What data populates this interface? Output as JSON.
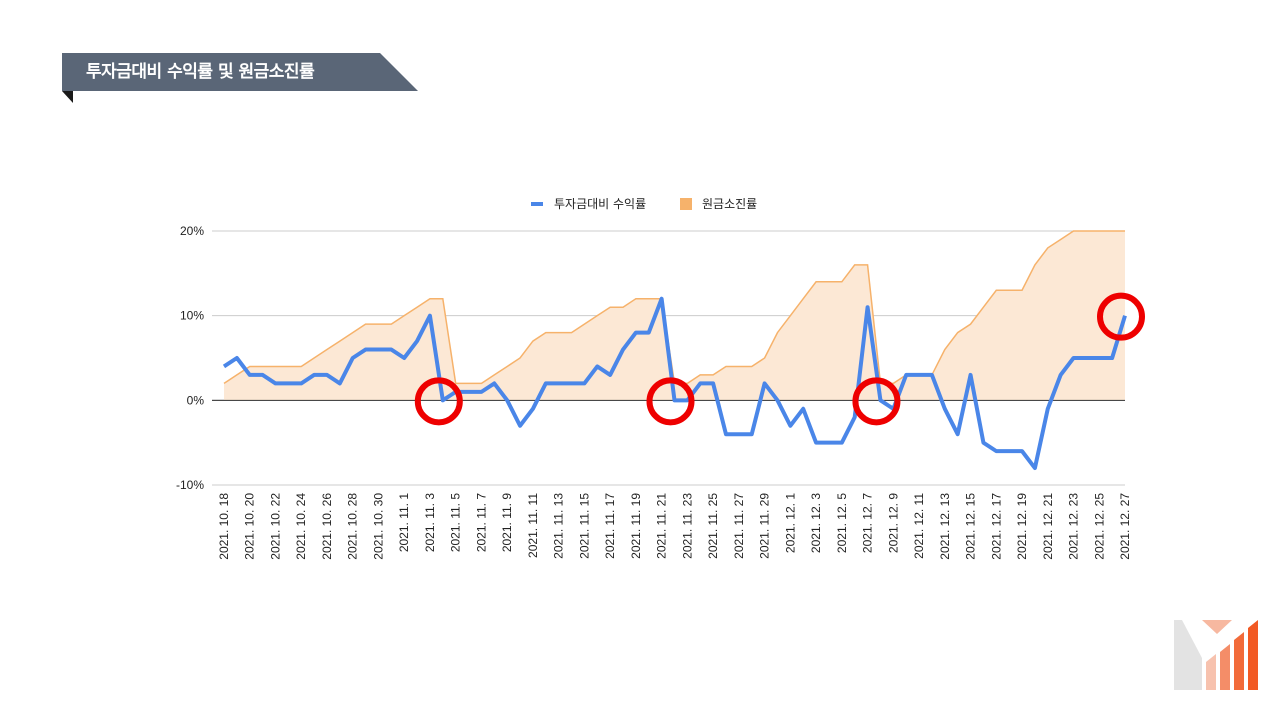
{
  "header": {
    "title": "투자금대비 수익률 및 원금소진률"
  },
  "colors": {
    "banner": "#5a6677",
    "banner_fold": "#1a1a1a",
    "line": "#4a86e8",
    "area_fill": "#fce8d5",
    "area_stroke": "#f6b26b",
    "marker": "#ee0000",
    "logo_light": "#e0e0e0",
    "logo_peach": "#f7b8a0",
    "logo_orange": "#f26b3a"
  },
  "chart_data": {
    "type": "line",
    "x": [
      "2021. 10. 18",
      "2021. 10. 19",
      "2021. 10. 20",
      "2021. 10. 21",
      "2021. 10. 22",
      "2021. 10. 23",
      "2021. 10. 24",
      "2021. 10. 25",
      "2021. 10. 26",
      "2021. 10. 27",
      "2021. 10. 28",
      "2021. 10. 29",
      "2021. 10. 30",
      "2021. 10. 31",
      "2021. 11. 1",
      "2021. 11. 2",
      "2021. 11. 3",
      "2021. 11. 4",
      "2021. 11. 5",
      "2021. 11. 6",
      "2021. 11. 7",
      "2021. 11. 8",
      "2021. 11. 9",
      "2021. 11. 10",
      "2021. 11. 11",
      "2021. 11. 12",
      "2021. 11. 13",
      "2021. 11. 14",
      "2021. 11. 15",
      "2021. 11. 16",
      "2021. 11. 17",
      "2021. 11. 18",
      "2021. 11. 19",
      "2021. 11. 20",
      "2021. 11. 21",
      "2021. 11. 22",
      "2021. 11. 23",
      "2021. 11. 24",
      "2021. 11. 25",
      "2021. 11. 26",
      "2021. 11. 27",
      "2021. 11. 28",
      "2021. 11. 29",
      "2021. 11. 30",
      "2021. 12. 1",
      "2021. 12. 2",
      "2021. 12. 3",
      "2021. 12. 4",
      "2021. 12. 5",
      "2021. 12. 6",
      "2021. 12. 7",
      "2021. 12. 8",
      "2021. 12. 9",
      "2021. 12. 10",
      "2021. 12. 11",
      "2021. 12. 12",
      "2021. 12. 13",
      "2021. 12. 14",
      "2021. 12. 15",
      "2021. 12. 16",
      "2021. 12. 17",
      "2021. 12. 18",
      "2021. 12. 19",
      "2021. 12. 20",
      "2021. 12. 21",
      "2021. 12. 22",
      "2021. 12. 23",
      "2021. 12. 24",
      "2021. 12. 25",
      "2021. 12. 26",
      "2021. 12. 27"
    ],
    "x_tick_labels": [
      "2021. 10. 18",
      "2021. 10. 20",
      "2021. 10. 22",
      "2021. 10. 24",
      "2021. 10. 26",
      "2021. 10. 28",
      "2021. 10. 30",
      "2021. 11. 1",
      "2021. 11. 3",
      "2021. 11. 5",
      "2021. 11. 7",
      "2021. 11. 9",
      "2021. 11. 11",
      "2021. 11. 13",
      "2021. 11. 15",
      "2021. 11. 17",
      "2021. 11. 19",
      "2021. 11. 21",
      "2021. 11. 23",
      "2021. 11. 25",
      "2021. 11. 27",
      "2021. 11. 29",
      "2021. 12. 1",
      "2021. 12. 3",
      "2021. 12. 5",
      "2021. 12. 7",
      "2021. 12. 9",
      "2021. 12. 11",
      "2021. 12. 13",
      "2021. 12. 15",
      "2021. 12. 17",
      "2021. 12. 19",
      "2021. 12. 21",
      "2021. 12. 23",
      "2021. 12. 25",
      "2021. 12. 27"
    ],
    "series": [
      {
        "name": "투자금대비 수익률",
        "kind": "line",
        "values": [
          4,
          5,
          3,
          3,
          2,
          2,
          2,
          3,
          3,
          2,
          5,
          6,
          6,
          6,
          5,
          7,
          10,
          0,
          1,
          1,
          1,
          2,
          0,
          -3,
          -1,
          2,
          2,
          2,
          2,
          4,
          3,
          6,
          8,
          8,
          12,
          0,
          0,
          2,
          2,
          -4,
          -4,
          -4,
          2,
          0,
          -3,
          -1,
          -5,
          -5,
          -5,
          -2,
          11,
          0,
          -1,
          3,
          3,
          3,
          -1,
          -4,
          3,
          -5,
          -6,
          -6,
          -6,
          -8,
          -1,
          3,
          5,
          5,
          5,
          5,
          10
        ]
      },
      {
        "name": "원금소진률",
        "kind": "area",
        "values": [
          2,
          3,
          4,
          4,
          4,
          4,
          4,
          5,
          6,
          7,
          8,
          9,
          9,
          9,
          10,
          11,
          12,
          12,
          2,
          2,
          2,
          3,
          4,
          5,
          7,
          8,
          8,
          8,
          9,
          10,
          11,
          11,
          12,
          12,
          12,
          2,
          2,
          3,
          3,
          4,
          4,
          4,
          5,
          8,
          10,
          12,
          14,
          14,
          14,
          16,
          16,
          2,
          2,
          3,
          3,
          3,
          6,
          8,
          9,
          11,
          13,
          13,
          13,
          16,
          18,
          19,
          20,
          20,
          20,
          20,
          20
        ]
      }
    ],
    "highlighted_dates": [
      "2021. 11. 4",
      "2021. 11. 22",
      "2021. 12. 8",
      "2021. 12. 27"
    ],
    "y_ticks": [
      "20%",
      "10%",
      "0%",
      "-10%"
    ],
    "ylim": [
      -10,
      20
    ],
    "legend_position": "top",
    "grid": true
  }
}
